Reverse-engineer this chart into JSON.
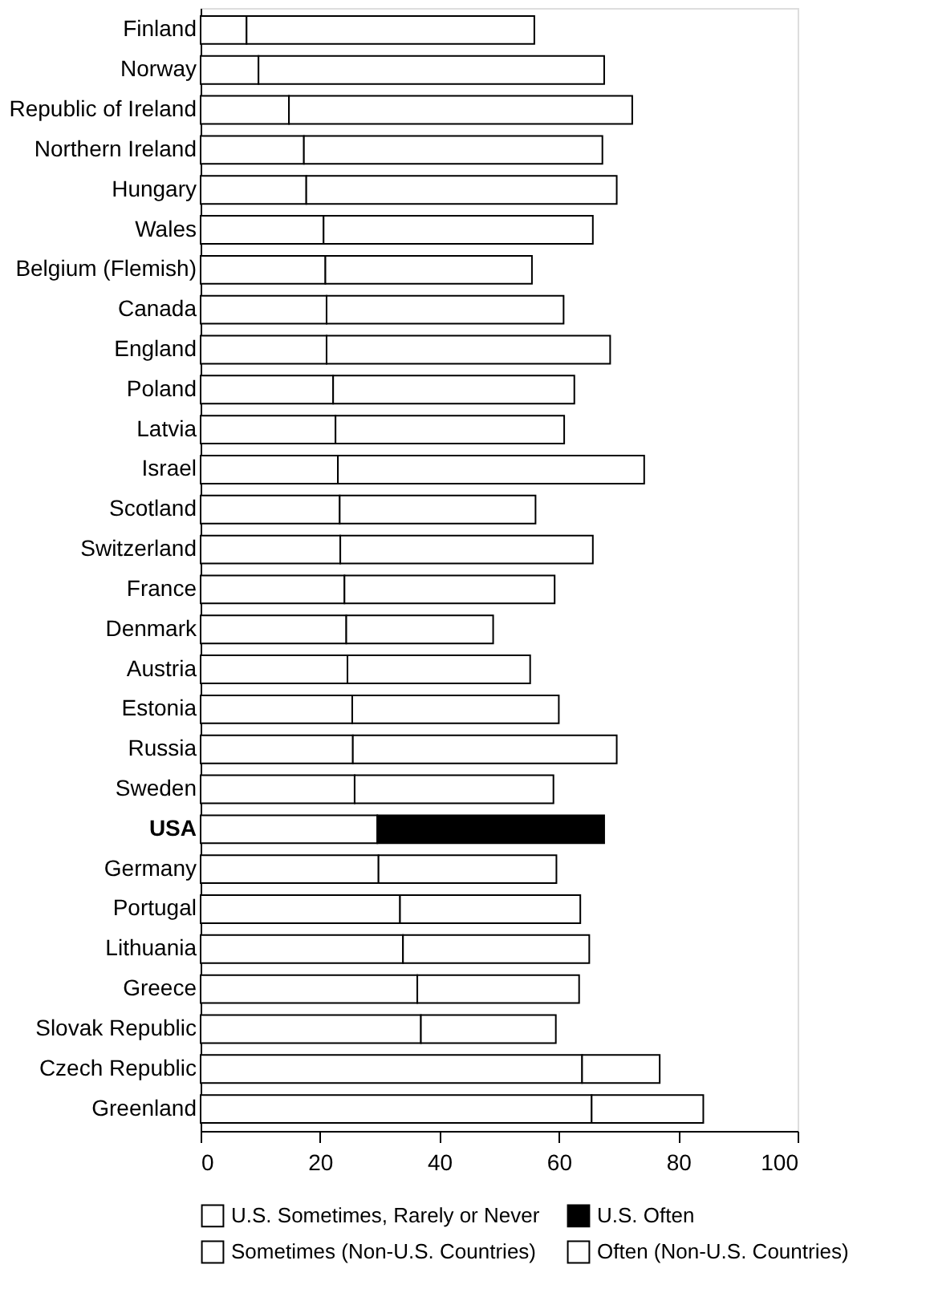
{
  "chart_data": {
    "type": "bar",
    "orientation": "horizontal",
    "stacked": true,
    "categories": [
      "Finland",
      "Norway",
      "Republic of Ireland",
      "Northern Ireland",
      "Hungary",
      "Wales",
      "Belgium (Flemish)",
      "Canada",
      "England",
      "Poland",
      "Latvia",
      "Israel",
      "Scotland",
      "Switzerland",
      "France",
      "Denmark",
      "Austria",
      "Estonia",
      "Russia",
      "Sweden",
      "USA",
      "Germany",
      "Portugal",
      "Lithuania",
      "Greece",
      "Slovak Republic",
      "Czech Republic",
      "Greenland"
    ],
    "series": [
      {
        "name": "U.S. Sometimes, Rarely or Never",
        "color": "#ffffff",
        "values": [
          null,
          null,
          null,
          null,
          null,
          null,
          null,
          null,
          null,
          null,
          null,
          null,
          null,
          null,
          null,
          null,
          null,
          null,
          null,
          null,
          29.6,
          null,
          null,
          null,
          null,
          null,
          null,
          null
        ]
      },
      {
        "name": "U.S. Often",
        "color": "#000000",
        "values": [
          null,
          null,
          null,
          null,
          null,
          null,
          null,
          null,
          null,
          null,
          null,
          null,
          null,
          null,
          null,
          null,
          null,
          null,
          null,
          null,
          38.0,
          null,
          null,
          null,
          null,
          null,
          null,
          null
        ]
      },
      {
        "name": "Sometimes (Non-U.S. Countries)",
        "color": "#ffffff",
        "values": [
          7.7,
          9.7,
          14.8,
          17.3,
          17.7,
          20.6,
          20.9,
          21.1,
          21.1,
          22.2,
          22.6,
          23.0,
          23.3,
          23.4,
          24.1,
          24.4,
          24.6,
          25.4,
          25.5,
          25.8,
          null,
          29.8,
          33.4,
          33.9,
          36.3,
          36.9,
          63.9,
          65.5
        ]
      },
      {
        "name": "Often (Non-U.S. Countries)",
        "color": "#ffffff",
        "values": [
          48.2,
          57.9,
          57.5,
          50.0,
          52.0,
          45.1,
          34.6,
          39.7,
          47.5,
          40.4,
          38.3,
          51.3,
          32.8,
          42.3,
          35.2,
          24.6,
          30.6,
          34.6,
          44.2,
          33.3,
          null,
          29.8,
          30.2,
          31.2,
          27.1,
          22.6,
          13.0,
          18.7
        ]
      }
    ],
    "xlim": [
      0,
      100
    ],
    "xticks": [
      0,
      20,
      40,
      60,
      80,
      100
    ],
    "grid": false,
    "legend": "bottom"
  }
}
